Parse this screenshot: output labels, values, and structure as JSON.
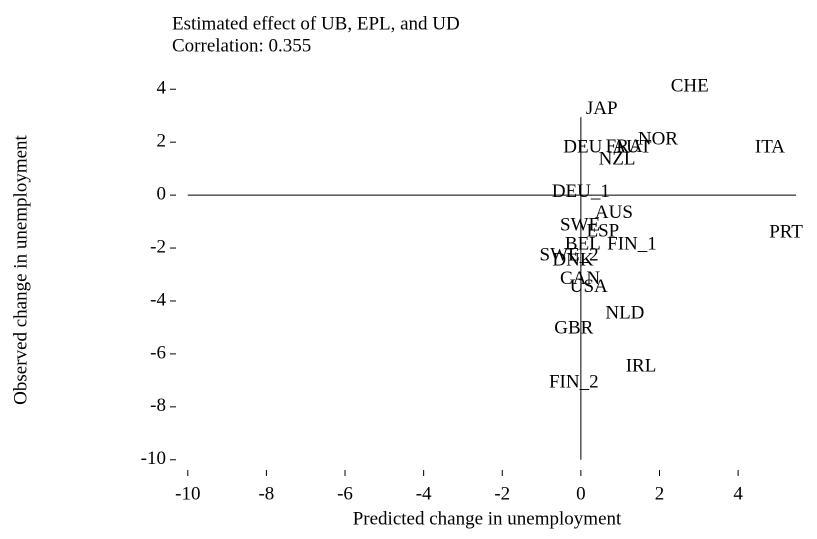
{
  "chart_data": {
    "type": "scatter",
    "title": "Estimated effect of UB, EPL, and UD",
    "subtitle": "Correlation: 0.355",
    "x_label": "Predicted change in unemployment",
    "y_label": "Observed change in unemployment",
    "zero_lines": true,
    "xlim": [
      -10.3,
      5.6
    ],
    "ylim": [
      -10.5,
      4.5
    ],
    "xticks": [
      -10,
      -8,
      -6,
      -4,
      -2,
      0,
      2,
      4
    ],
    "yticks": [
      4,
      2,
      0,
      -2,
      -4,
      -6,
      -8,
      -10
    ],
    "series": [
      {
        "name": "Countries",
        "color": "#000000",
        "labels": [
          "CHE",
          "JAP",
          "NOR",
          "ITA",
          "DEU",
          "FRA",
          "AUT",
          "NZL",
          "DEU_1",
          "AUS",
          "SWE",
          "ESP",
          "PRT",
          "FIN_1",
          "BEL",
          "SWE_2",
          "DNK",
          "CAN",
          "USA",
          "NLD",
          "GBR",
          "IRL",
          "FIN_2"
        ],
        "x": [
          2.77,
          0.53,
          1.96,
          4.81,
          0.05,
          1.1,
          1.3,
          0.92,
          0.0,
          0.84,
          -0.02,
          0.56,
          5.22,
          1.3,
          0.05,
          -0.3,
          -0.2,
          -0.02,
          0.2,
          1.12,
          -0.18,
          1.53,
          -0.18
        ],
        "values": [
          4.08,
          3.22,
          2.08,
          1.78,
          1.78,
          1.8,
          1.78,
          1.32,
          0.1,
          -0.7,
          -1.17,
          -1.4,
          -1.44,
          -1.9,
          -1.9,
          -2.3,
          -2.5,
          -3.2,
          -3.5,
          -4.5,
          -5.07,
          -6.5,
          -7.1
        ]
      }
    ]
  }
}
